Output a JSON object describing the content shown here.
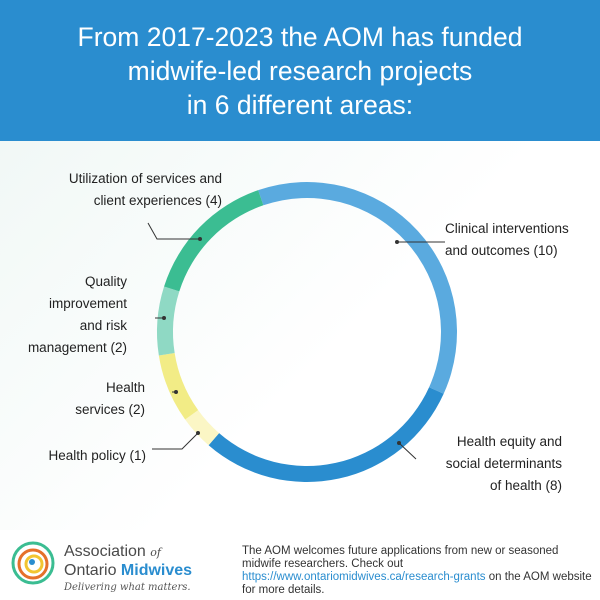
{
  "header": {
    "title_lines": [
      "From 2017-2023 the AOM has funded",
      "midwife-led research projects",
      "in 6 different areas:"
    ],
    "background": "#2a8dcf"
  },
  "chart_data": {
    "type": "pie",
    "style": "donut",
    "title": "From 2017-2023 the AOM has funded midwife-led research projects in 6 different areas:",
    "slices": [
      {
        "label": "Clinical interventions and outcomes (10)",
        "value": 10,
        "color": "#5aaadf"
      },
      {
        "label": "Health equity and social determinants of health (8)",
        "value": 8,
        "color": "#2a8dcf"
      },
      {
        "label": "Health policy (1)",
        "value": 1,
        "color": "#fbf6c5"
      },
      {
        "label": "Health services (2)",
        "value": 2,
        "color": "#f2ec86"
      },
      {
        "label": "Quality improvement and risk management (2)",
        "value": 2,
        "color": "#8fd9c4"
      },
      {
        "label": "Utilization of services and client experiences (4)",
        "value": 4,
        "color": "#3bbd92"
      }
    ],
    "labels": [
      {
        "lines": [
          "Clinical interventions",
          "and outcomes (10)"
        ]
      },
      {
        "lines": [
          "Health equity and",
          "social determinants",
          "of health (8)"
        ]
      },
      {
        "lines": [
          "Health policy (1)"
        ]
      },
      {
        "lines": [
          "Health",
          "services (2)"
        ]
      },
      {
        "lines": [
          "Quality",
          "improvement",
          "and risk",
          "management (2)"
        ]
      },
      {
        "lines": [
          "Utilization of services and",
          "client experiences (4)"
        ]
      }
    ]
  },
  "footer": {
    "org_name_1": "Association",
    "org_of": "of",
    "org_name_2a": "Ontario ",
    "org_name_2b": "Midwives",
    "tagline": "Delivering what matters.",
    "note_before": "The AOM welcomes future applications from new or seasoned midwife researchers. Check out ",
    "note_link": "https://www.ontariomidwives.ca/research-grants",
    "note_after": " on the AOM website for more details."
  }
}
